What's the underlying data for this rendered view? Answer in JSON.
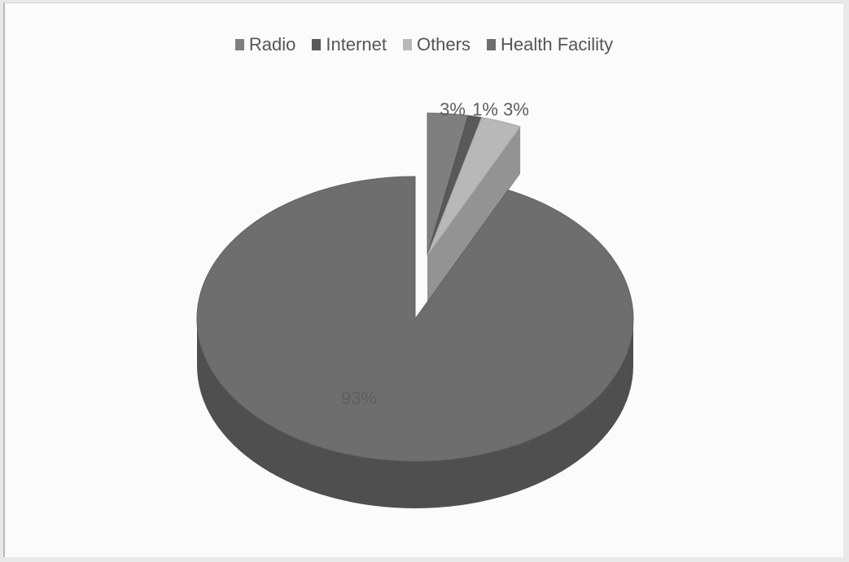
{
  "chart_data": {
    "type": "pie",
    "categories": [
      "Radio",
      "Internet",
      "Others",
      "Health Facility"
    ],
    "values": [
      3,
      1,
      3,
      93
    ],
    "data_labels": [
      "3%",
      "1%",
      "3%",
      "93%"
    ],
    "colors": {
      "Radio": "#7f7f7f",
      "Internet": "#595959",
      "Others": "#b8b8b8",
      "Health Facility": "#6e6e6e"
    },
    "legend_position": "top",
    "style": "3d-exploded"
  }
}
